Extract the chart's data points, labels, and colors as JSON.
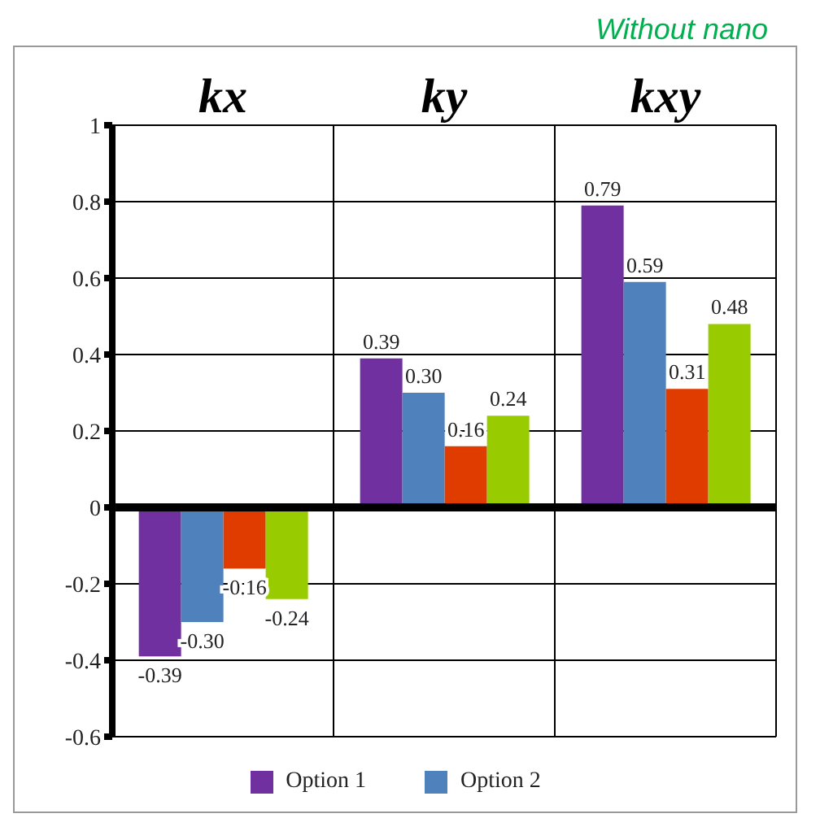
{
  "chart_data": {
    "type": "bar",
    "title": "Without nano",
    "categories": [
      "kx",
      "ky",
      "kxy"
    ],
    "series": [
      {
        "name": "Option 1",
        "color": "#7030a0",
        "values": [
          -0.39,
          0.39,
          0.79
        ],
        "value_labels": [
          "-0.39",
          "0.39",
          "0.79"
        ]
      },
      {
        "name": "Option 2",
        "color": "#4f81bd",
        "values": [
          -0.3,
          0.3,
          0.59
        ],
        "value_labels": [
          "-0.30",
          "0.30",
          "0.59"
        ]
      },
      {
        "color": "#e03c00",
        "values": [
          -0.16,
          0.16,
          0.31
        ],
        "value_labels": [
          "-0.16",
          "0.16",
          "0.31"
        ]
      },
      {
        "color": "#99cc00",
        "values": [
          -0.24,
          0.24,
          0.48
        ],
        "value_labels": [
          "-0.24",
          "0.24",
          "0.48"
        ]
      }
    ],
    "ylim": [
      -0.6,
      1
    ],
    "yticks": [
      -0.6,
      -0.4,
      -0.2,
      0,
      0.2,
      0.4,
      0.6,
      0.8,
      1
    ],
    "grid": true,
    "legend": "bottom"
  }
}
